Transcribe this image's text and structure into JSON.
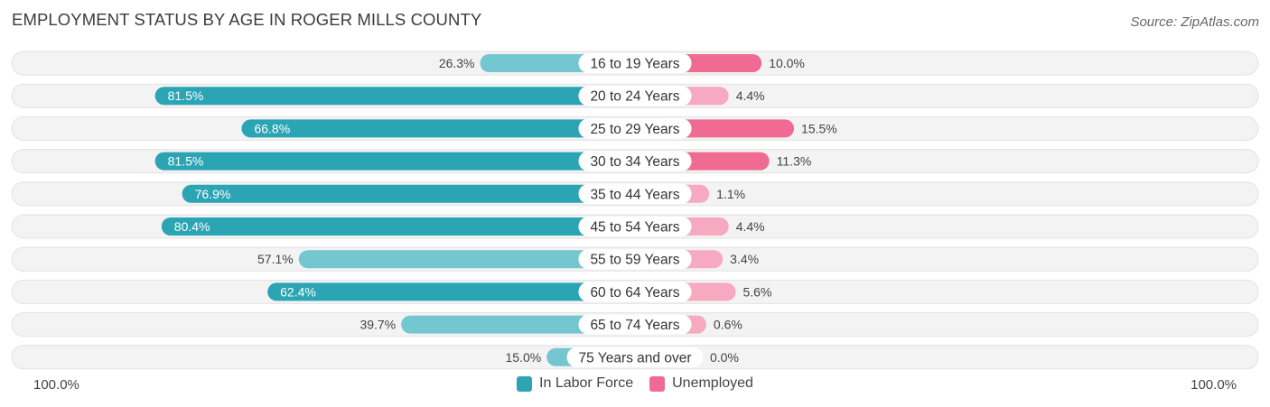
{
  "title": "EMPLOYMENT STATUS BY AGE IN ROGER MILLS COUNTY",
  "source": "Source: ZipAtlas.com",
  "colors": {
    "labor_strong": "#2ba4b4",
    "labor_light": "#74c6d1",
    "unemp_strong": "#f06b94",
    "unemp_light": "#f6a9c1",
    "row_bg": "#efefef"
  },
  "axis": {
    "left_label": "100.0%",
    "right_label": "100.0%"
  },
  "legend": [
    {
      "label": "In Labor Force",
      "color": "#2ba4b4"
    },
    {
      "label": "Unemployed",
      "color": "#f06b94"
    }
  ],
  "chart_data": {
    "type": "bar",
    "orientation": "horizontal-diverging",
    "title": "EMPLOYMENT STATUS BY AGE IN ROGER MILLS COUNTY",
    "xlim": [
      -100,
      100
    ],
    "categories": [
      "16 to 19 Years",
      "20 to 24 Years",
      "25 to 29 Years",
      "30 to 34 Years",
      "35 to 44 Years",
      "45 to 54 Years",
      "55 to 59 Years",
      "60 to 64 Years",
      "65 to 74 Years",
      "75 Years and over"
    ],
    "series": [
      {
        "name": "In Labor Force",
        "values": [
          26.3,
          81.5,
          66.8,
          81.5,
          76.9,
          80.4,
          57.1,
          62.4,
          39.7,
          15.0
        ],
        "labels": [
          "26.3%",
          "81.5%",
          "66.8%",
          "81.5%",
          "76.9%",
          "80.4%",
          "57.1%",
          "62.4%",
          "39.7%",
          "15.0%"
        ]
      },
      {
        "name": "Unemployed",
        "values": [
          10.0,
          4.4,
          15.5,
          11.3,
          1.1,
          4.4,
          3.4,
          5.6,
          0.6,
          0.0
        ],
        "labels": [
          "10.0%",
          "4.4%",
          "15.5%",
          "11.3%",
          "1.1%",
          "4.4%",
          "3.4%",
          "5.6%",
          "0.6%",
          "0.0%"
        ]
      }
    ]
  }
}
